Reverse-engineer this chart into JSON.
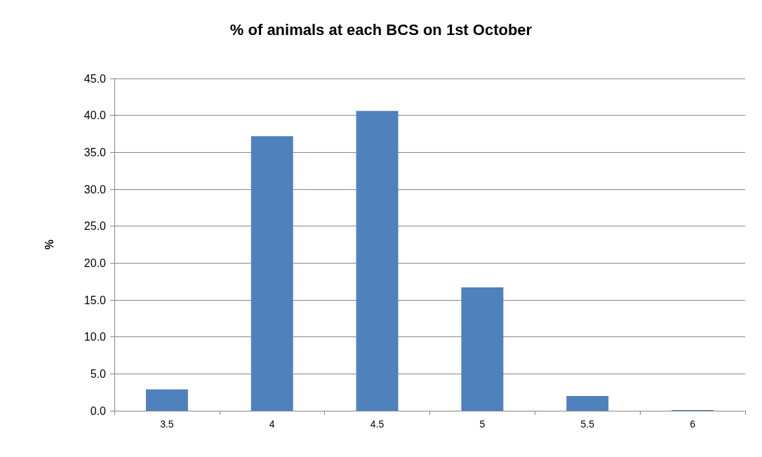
{
  "chart_data": {
    "type": "bar",
    "title": "% of animals at each BCS on 1st October",
    "ylabel": "%",
    "categories": [
      "3.5",
      "4",
      "4.5",
      "5",
      "5.5",
      "6"
    ],
    "values": [
      2.9,
      37.2,
      40.6,
      16.7,
      2.0,
      0.1
    ],
    "color": "#4f81bd",
    "ylim": [
      0,
      45
    ],
    "yticks": [
      {
        "value": 0,
        "label": "0.0"
      },
      {
        "value": 5,
        "label": "5.0"
      },
      {
        "value": 10,
        "label": "10.0"
      },
      {
        "value": 15,
        "label": "15.0"
      },
      {
        "value": 20,
        "label": "20.0"
      },
      {
        "value": 25,
        "label": "25.0"
      },
      {
        "value": 30,
        "label": "30.0"
      },
      {
        "value": 35,
        "label": "35.0"
      },
      {
        "value": 40,
        "label": "40.0"
      },
      {
        "value": 45,
        "label": "45.0"
      }
    ],
    "grid": "y"
  }
}
